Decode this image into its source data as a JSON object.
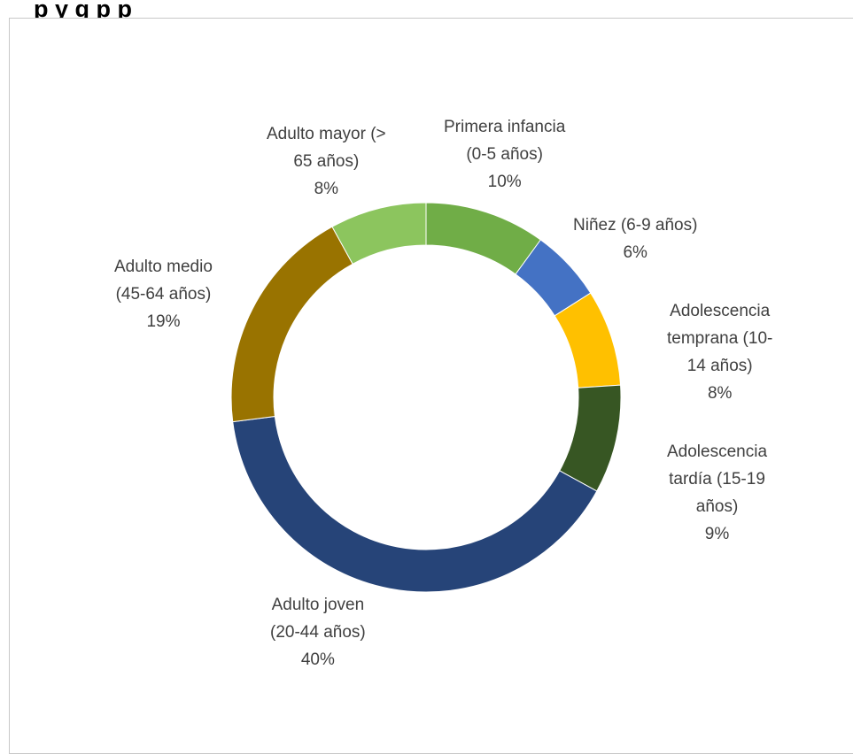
{
  "title": "p                   y                                    g        p p",
  "chart_data": {
    "type": "pie",
    "subtype": "donut",
    "slices": [
      {
        "label": [
          "Primera infancia",
          "(0-5 años)"
        ],
        "percent_label": "10%",
        "value": 10,
        "color": "#70ad47"
      },
      {
        "label": [
          "Niñez (6-9 años)"
        ],
        "percent_label": "6%",
        "value": 6,
        "color": "#4472c4"
      },
      {
        "label": [
          "Adolescencia",
          "temprana (10-",
          "14 años)"
        ],
        "percent_label": "8%",
        "value": 8,
        "color": "#ffc000"
      },
      {
        "label": [
          "Adolescencia",
          "tardía (15-19",
          "años)"
        ],
        "percent_label": "9%",
        "value": 9,
        "color": "#375623"
      },
      {
        "label": [
          "Adulto joven",
          "(20-44 años)"
        ],
        "percent_label": "40%",
        "value": 40,
        "color": "#264478"
      },
      {
        "label": [
          "Adulto medio",
          "(45-64 años)"
        ],
        "percent_label": "19%",
        "value": 19,
        "color": "#997300"
      },
      {
        "label": [
          "Adulto mayor (>",
          "65 años)"
        ],
        "percent_label": "8%",
        "value": 8,
        "color": "#8cc55e"
      }
    ],
    "legend": "none",
    "data_labels": "outside"
  }
}
